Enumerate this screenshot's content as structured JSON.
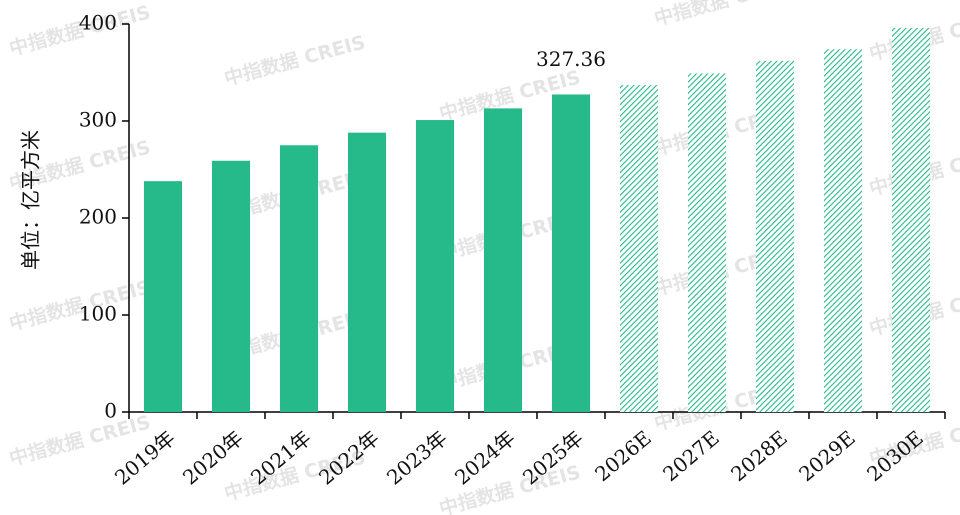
{
  "chart_data": {
    "type": "bar",
    "y_label": "单位：亿平方米",
    "watermark": "中指数据 CREIS",
    "categories": [
      "2019年",
      "2020年",
      "2021年",
      "2022年",
      "2023年",
      "2024年",
      "2025年",
      "2026E",
      "2027E",
      "2028E",
      "2029E",
      "2030E"
    ],
    "values": [
      238,
      259,
      275,
      288,
      301,
      313,
      327.36,
      337,
      349,
      362,
      374,
      396
    ],
    "value_labels": [
      null,
      null,
      null,
      null,
      null,
      null,
      "327.36",
      null,
      null,
      null,
      null,
      null
    ],
    "hatched": [
      false,
      false,
      false,
      false,
      false,
      false,
      false,
      true,
      true,
      true,
      true,
      true
    ],
    "color": "#26ba8b",
    "ylim": [
      0,
      400
    ],
    "yticks": [
      0,
      100,
      200,
      300,
      400
    ],
    "grid": false
  }
}
